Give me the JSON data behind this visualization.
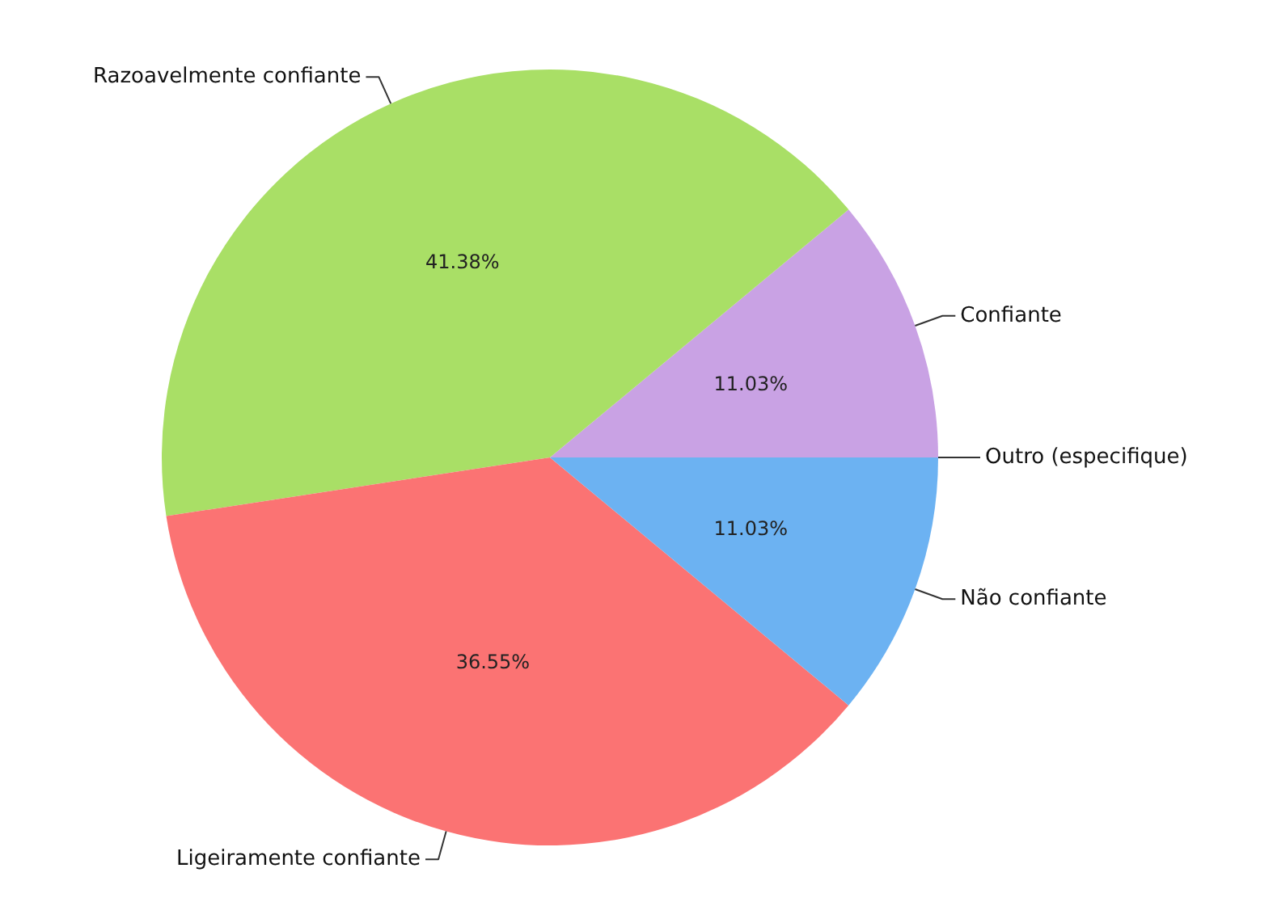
{
  "chart_data": {
    "type": "pie",
    "categories": [
      "Confiante",
      "Razoavelmente confiante",
      "Ligeiramente confiante",
      "Não confiante",
      "Outro (especifique)"
    ],
    "values": [
      11.03,
      41.38,
      36.55,
      11.03,
      0
    ],
    "colors": [
      "#c9a2e4",
      "#a9df66",
      "#fb7373",
      "#6cb2f2",
      null
    ],
    "value_labels": [
      "11.03%",
      "41.38%",
      "36.55%",
      "11.03%",
      null
    ]
  }
}
